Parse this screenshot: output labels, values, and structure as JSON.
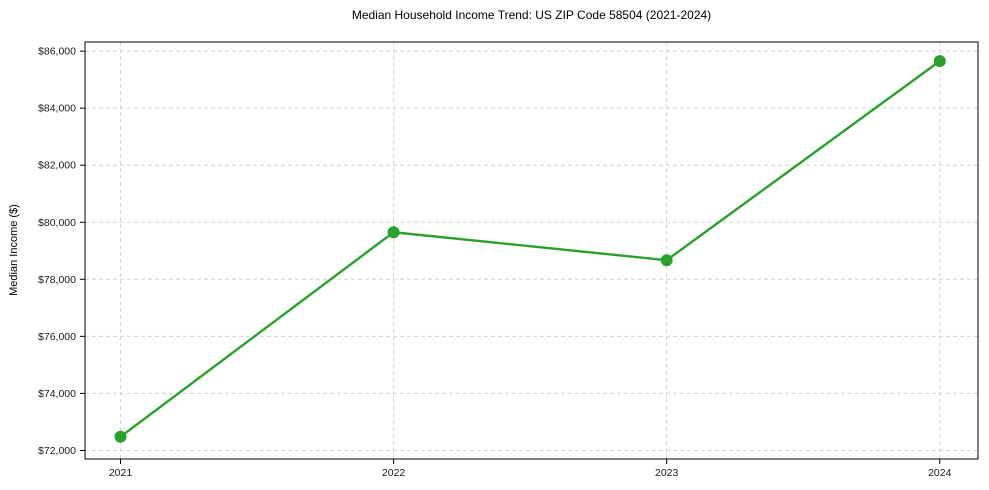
{
  "chart_data": {
    "type": "line",
    "title": "Median Household Income Trend: US ZIP Code 58504 (2021-2024)",
    "xlabel": "",
    "ylabel": "Median Income ($)",
    "x": [
      2021,
      2022,
      2023,
      2024
    ],
    "x_tick_labels": [
      "2021",
      "2022",
      "2023",
      "2024"
    ],
    "series": [
      {
        "name": "Median household income",
        "values": [
          72480,
          79650,
          78670,
          85650
        ],
        "color": "#2ca02c",
        "marker": "circle",
        "marker_radius": 6,
        "line_width": 2.4
      }
    ],
    "y_ticks": [
      {
        "value": 72000,
        "label": "$72,000"
      },
      {
        "value": 74000,
        "label": "$74,000"
      },
      {
        "value": 76000,
        "label": "$76,000"
      },
      {
        "value": 78000,
        "label": "$78,000"
      },
      {
        "value": 80000,
        "label": "$80,000"
      },
      {
        "value": 82000,
        "label": "$82,000"
      },
      {
        "value": 84000,
        "label": "$84,000"
      },
      {
        "value": 86000,
        "label": "$86,000"
      }
    ],
    "ylim": [
      71700,
      86320
    ],
    "xlim": [
      2020.87,
      2024.14
    ],
    "grid": true,
    "grid_color": "#d4d4d4",
    "axis_color": "#000000",
    "tick_color": "#000000",
    "background": "#ffffff",
    "legend": "none"
  }
}
